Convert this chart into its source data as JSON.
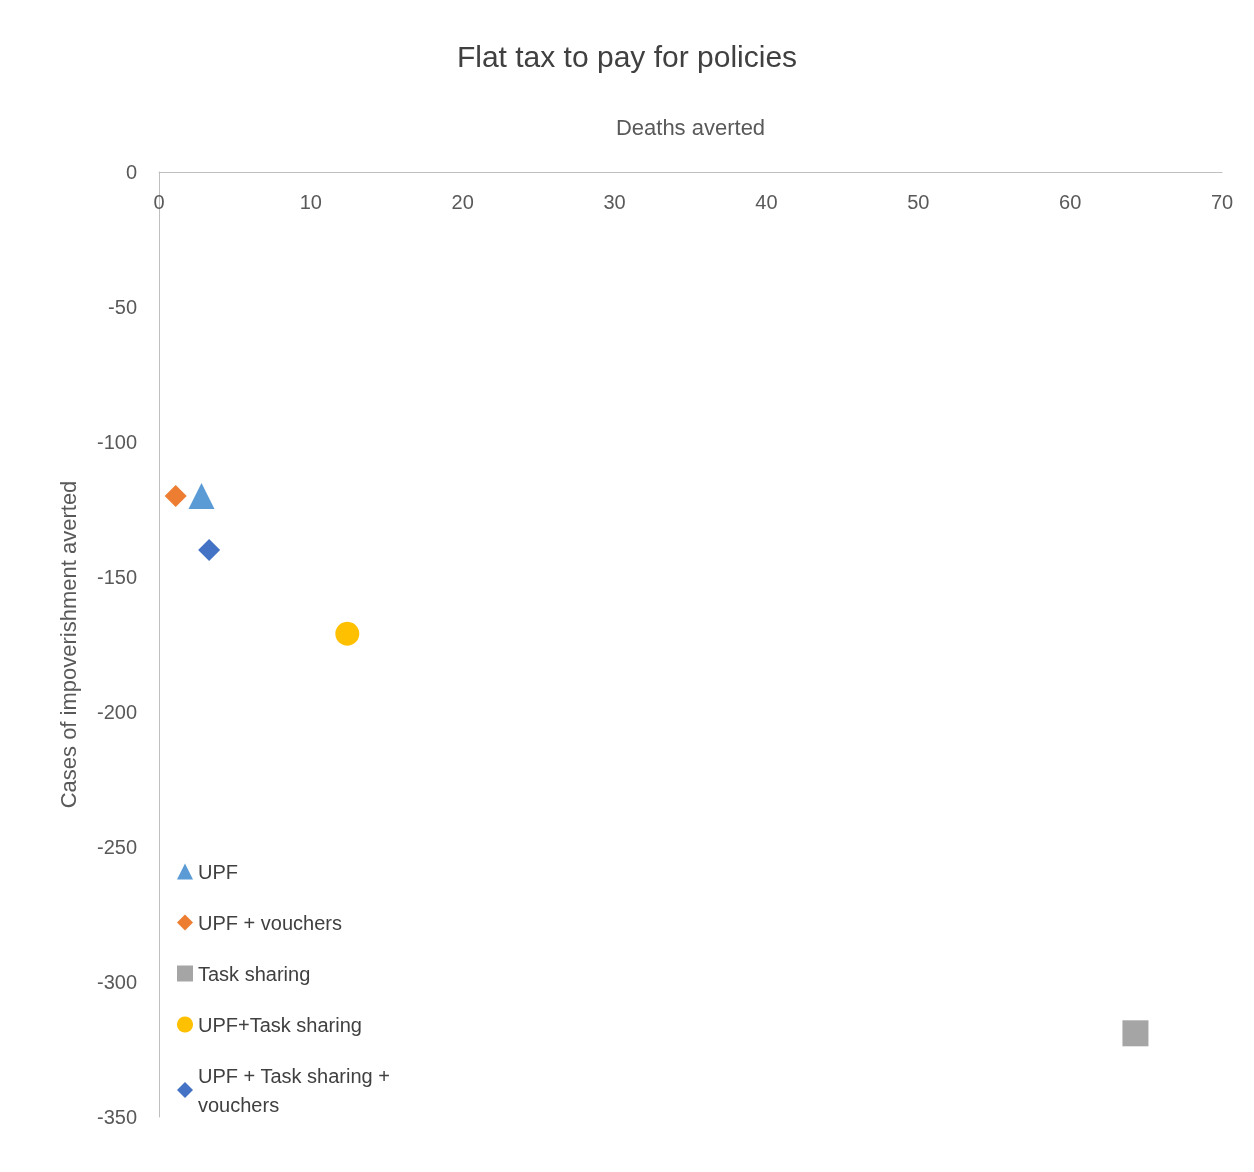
{
  "chart_data": {
    "type": "scatter",
    "title": "Flat tax to pay for policies",
    "xlabel": "Deaths averted",
    "ylabel": "Cases of impoverishment averted",
    "xlim": [
      0,
      70
    ],
    "xticks": [
      0,
      10,
      20,
      30,
      40,
      50,
      60,
      70
    ],
    "ylim": [
      -350,
      0
    ],
    "yticks": [
      -350,
      -300,
      -250,
      -200,
      -150,
      -100,
      -50,
      0
    ],
    "grid": false,
    "legend": "bottom left",
    "series": [
      {
        "name": "UPF",
        "color": "#5b9bd5",
        "marker": "triangle",
        "x": [
          2.8
        ],
        "values": [
          -120
        ]
      },
      {
        "name": "UPF + vouchers",
        "color": "#ed7d31",
        "marker": "diamond",
        "x": [
          1.1
        ],
        "values": [
          -120
        ]
      },
      {
        "name": "Task sharing",
        "color": "#a5a5a5",
        "marker": "square",
        "x": [
          64.3
        ],
        "values": [
          -319
        ]
      },
      {
        "name": "UPF+Task sharing",
        "color": "#ffc000",
        "marker": "circle",
        "x": [
          12.4
        ],
        "values": [
          -171
        ]
      },
      {
        "name": "UPF + Task sharing + vouchers",
        "color": "#4472c4",
        "marker": "diamond",
        "x": [
          3.3
        ],
        "values": [
          -140
        ]
      }
    ]
  }
}
